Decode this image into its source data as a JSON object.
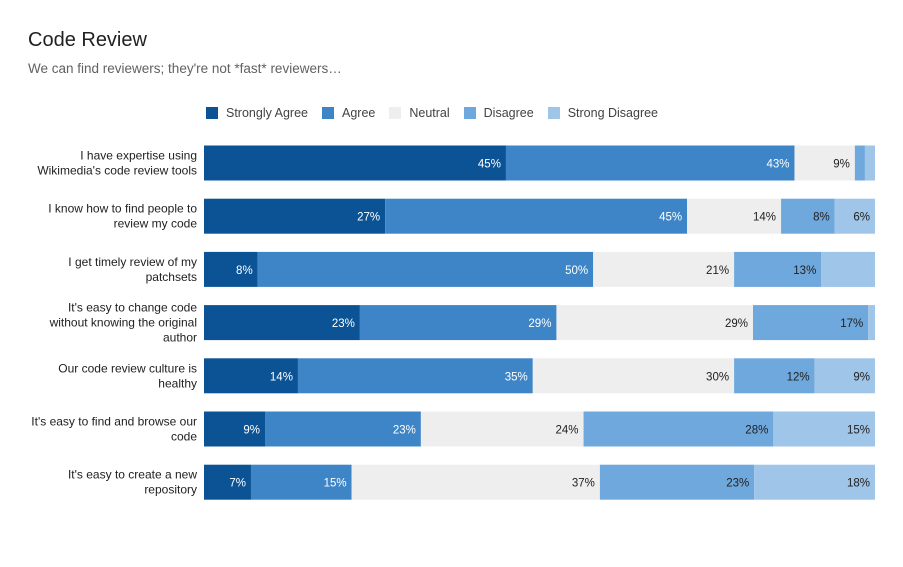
{
  "header": {
    "title": "Code Review",
    "subtitle": "We can find reviewers; they're not *fast* reviewers…"
  },
  "colors": {
    "series": [
      "#0b5394",
      "#3d85c6",
      "#eeeeee",
      "#6fa8dc",
      "#9fc5e8"
    ],
    "label_light": "#ffffff",
    "label_dark": "#212121"
  },
  "chart_data": {
    "type": "bar",
    "orientation": "horizontal",
    "stacked": true,
    "percent_stacked": true,
    "legend_position": "top",
    "grid": false,
    "categories": [
      "I have expertise using Wikimedia's code review tools",
      "I know how to find people to review my code",
      "I get timely review of my patchsets",
      "It's easy to change code without knowing the original author",
      "Our code review culture is healthy",
      "It's easy to find and browse our code",
      "It's easy to create a new repository"
    ],
    "category_lines": [
      [
        "I have expertise using",
        "Wikimedia's code review tools"
      ],
      [
        "I know how to find people to",
        "review my code"
      ],
      [
        "I get timely review of my",
        "patchsets"
      ],
      [
        "It's easy to change code",
        "without knowing the original",
        "author"
      ],
      [
        "Our code review culture is",
        "healthy"
      ],
      [
        "It's easy to find and browse our",
        "code"
      ],
      [
        "It's easy to create a new",
        "repository"
      ]
    ],
    "series": [
      {
        "name": "Strongly Agree",
        "values": [
          45,
          27,
          8,
          23,
          14,
          9,
          7
        ],
        "labels": [
          "45%",
          "27%",
          "8%",
          "23%",
          "14%",
          "9%",
          "7%"
        ]
      },
      {
        "name": "Agree",
        "values": [
          43,
          45,
          50,
          29,
          35,
          23,
          15
        ],
        "labels": [
          "43%",
          "45%",
          "50%",
          "29%",
          "35%",
          "23%",
          "15%"
        ]
      },
      {
        "name": "Neutral",
        "values": [
          9,
          14,
          21,
          29,
          30,
          24,
          37
        ],
        "labels": [
          "9%",
          "14%",
          "21%",
          "29%",
          "30%",
          "24%",
          "37%"
        ]
      },
      {
        "name": "Disagree",
        "values": [
          1.5,
          8,
          13,
          17,
          12,
          28,
          23
        ],
        "labels": [
          "",
          "8%",
          "13%",
          "17%",
          "12%",
          "28%",
          "23%"
        ]
      },
      {
        "name": "Strong Disagree",
        "values": [
          1.5,
          6,
          8,
          1,
          9,
          15,
          18
        ],
        "labels": [
          "",
          "6%",
          "",
          "",
          "9%",
          "15%",
          "18%"
        ]
      }
    ]
  }
}
